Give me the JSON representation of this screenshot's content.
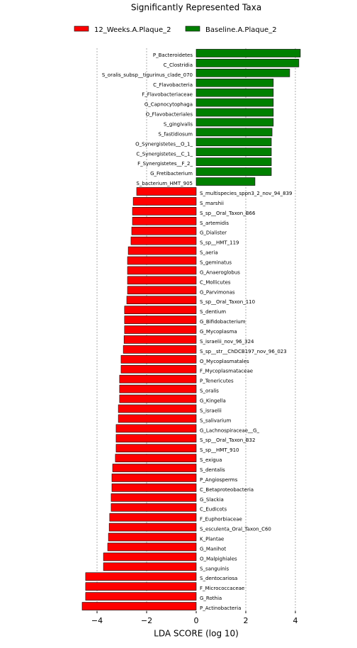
{
  "chart_data": {
    "type": "hbar",
    "title": "Significantly Represented Taxa",
    "xlabel": "LDA SCORE (log 10)",
    "categories": [
      "P_Bacteroidetes",
      "C_Clostridia",
      "S_oralis_subsp__tigurinus_clade_070",
      "C_Flavobacteria",
      "F_Flavobacteriaceae",
      "G_Capnocytophaga",
      "O_Flavobacteriales",
      "S_gingivalis",
      "S_fastidiosum",
      "O_Synergistetes__O_1_",
      "C_Synergistetes__C_1_",
      "F_Synergistetes__F_2_",
      "G_Fretibacterium",
      "S_bacterium_HMT_905",
      "S_multispecies_sppn3_2_nov_94_839",
      "S_marshii",
      "S_sp__Oral_Taxon_B66",
      "S_artemidis",
      "G_Dialister",
      "S_sp__HMT_119",
      "S_aeria",
      "S_geminatus",
      "G_Anaeroglobus",
      "C_Mollicutes",
      "G_Parvimonas",
      "S_sp__Oral_Taxon_110",
      "S_dentium",
      "G_Bifidobacterium",
      "G_Mycoplasma",
      "S_israelii_nov_96_324",
      "S_sp__str__ChDCB197_nov_96_023",
      "O_Mycoplasmatales",
      "F_Mycoplasmataceae",
      "P_Tenericutes",
      "S_oralis",
      "G_Kingella",
      "S_israelii",
      "S_salivarium",
      "G_Lachnospiraceae__G_",
      "S_sp__Oral_Taxon_B32",
      "S_sp__HMT_910",
      "S_exigua",
      "S_dentalis",
      "P_Angiosperms",
      "C_Betaproteobacteria",
      "G_Slackia",
      "C_Eudicots",
      "F_Euphorbiaceae",
      "S_esculenta_Oral_Taxon_C60",
      "K_Plantae",
      "G_Manihot",
      "O_Malpighiales",
      "S_sanguinis",
      "S_dentocariosa",
      "F_Micrococcaceae",
      "G_Rothia",
      "P_Actinobacteria"
    ],
    "series": [
      {
        "name": "12_Weeks.A.Plaque_2",
        "color": "#ff0000",
        "values": [
          null,
          null,
          null,
          null,
          null,
          null,
          null,
          null,
          null,
          null,
          null,
          null,
          null,
          null,
          -2.4,
          -2.54,
          -2.57,
          -2.57,
          -2.6,
          -2.63,
          -2.74,
          -2.77,
          -2.77,
          -2.77,
          -2.77,
          -2.8,
          -2.89,
          -2.89,
          -2.89,
          -2.91,
          -2.94,
          -3.03,
          -3.03,
          -3.09,
          -3.09,
          -3.09,
          -3.14,
          -3.14,
          -3.23,
          -3.23,
          -3.23,
          -3.26,
          -3.37,
          -3.4,
          -3.4,
          -3.43,
          -3.43,
          -3.49,
          -3.51,
          -3.54,
          -3.57,
          -3.74,
          -3.74,
          -4.46,
          -4.46,
          -4.46,
          -4.6
        ]
      },
      {
        "name": "Baseline.A.Plaque_2",
        "color": "#008000",
        "values": [
          4.2,
          4.14,
          3.77,
          3.11,
          3.11,
          3.11,
          3.11,
          3.11,
          3.06,
          3.03,
          3.03,
          3.03,
          3.03,
          2.37,
          null,
          null,
          null,
          null,
          null,
          null,
          null,
          null,
          null,
          null,
          null,
          null,
          null,
          null,
          null,
          null,
          null,
          null,
          null,
          null,
          null,
          null,
          null,
          null,
          null,
          null,
          null,
          null,
          null,
          null,
          null,
          null,
          null,
          null,
          null,
          null,
          null,
          null,
          null,
          null,
          null,
          null,
          null
        ]
      }
    ],
    "xlim": [
      -4.8,
      4.6
    ],
    "xticks": [
      {
        "value": -4,
        "label": "−4"
      },
      {
        "value": -2,
        "label": "−2"
      },
      0,
      2,
      4
    ],
    "grid": true,
    "legend": "top"
  }
}
